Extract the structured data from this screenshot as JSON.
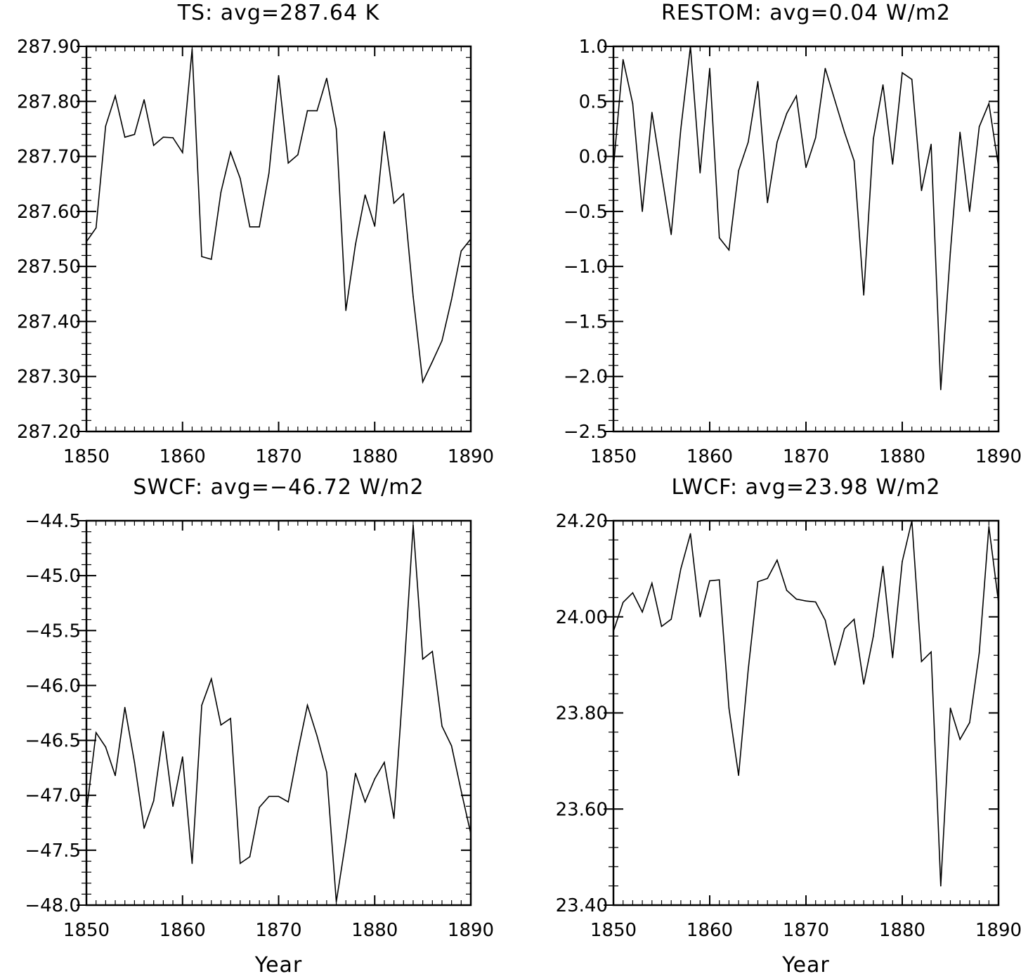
{
  "chart_data": [
    {
      "type": "line",
      "title": "TS: avg=287.64 K",
      "xlabel": "",
      "ylabel": "",
      "xlim": [
        1850,
        1890
      ],
      "ylim": [
        287.2,
        287.9
      ],
      "xticks": [
        1850,
        1860,
        1870,
        1880,
        1890
      ],
      "yticks": [
        287.2,
        287.3,
        287.4,
        287.5,
        287.6,
        287.7,
        287.8,
        287.9
      ],
      "ytick_labels": [
        "287.20",
        "287.30",
        "287.40",
        "287.50",
        "287.60",
        "287.70",
        "287.80",
        "287.90"
      ],
      "x": [
        1850,
        1851,
        1852,
        1853,
        1854,
        1855,
        1856,
        1857,
        1858,
        1859,
        1860,
        1861,
        1862,
        1863,
        1864,
        1865,
        1866,
        1867,
        1868,
        1869,
        1870,
        1871,
        1872,
        1873,
        1874,
        1875,
        1876,
        1877,
        1878,
        1879,
        1880,
        1881,
        1882,
        1883,
        1884,
        1885,
        1886,
        1887,
        1888,
        1889,
        1890
      ],
      "values": [
        287.545,
        287.57,
        287.755,
        287.81,
        287.735,
        287.74,
        287.803,
        287.72,
        287.735,
        287.734,
        287.707,
        287.895,
        287.518,
        287.513,
        287.635,
        287.708,
        287.66,
        287.572,
        287.572,
        287.67,
        287.847,
        287.688,
        287.703,
        287.783,
        287.783,
        287.842,
        287.75,
        287.42,
        287.54,
        287.63,
        287.573,
        287.745,
        287.615,
        287.632,
        287.445,
        287.29,
        287.327,
        287.365,
        287.44,
        287.528,
        287.55
      ]
    },
    {
      "type": "line",
      "title": "RESTOM: avg=0.04 W/m2",
      "xlabel": "",
      "ylabel": "",
      "xlim": [
        1850,
        1890
      ],
      "ylim": [
        -2.5,
        1.0
      ],
      "xticks": [
        1850,
        1860,
        1870,
        1880,
        1890
      ],
      "yticks": [
        -2.5,
        -2.0,
        -1.5,
        -1.0,
        -0.5,
        0.0,
        0.5,
        1.0
      ],
      "ytick_labels": [
        "−2.5",
        "−2.0",
        "−1.5",
        "−1.0",
        "−0.5",
        "0.0",
        "0.5",
        "1.0"
      ],
      "x": [
        1850,
        1851,
        1852,
        1853,
        1854,
        1855,
        1856,
        1857,
        1858,
        1859,
        1860,
        1861,
        1862,
        1863,
        1864,
        1865,
        1866,
        1867,
        1868,
        1869,
        1870,
        1871,
        1872,
        1873,
        1874,
        1875,
        1876,
        1877,
        1878,
        1879,
        1880,
        1881,
        1882,
        1883,
        1884,
        1885,
        1886,
        1887,
        1888,
        1889,
        1890
      ],
      "values": [
        -0.1,
        0.88,
        0.48,
        -0.5,
        0.4,
        -0.16,
        -0.71,
        0.25,
        1.0,
        -0.15,
        0.8,
        -0.74,
        -0.85,
        -0.13,
        0.13,
        0.68,
        -0.42,
        0.13,
        0.39,
        0.55,
        -0.1,
        0.17,
        0.8,
        0.51,
        0.22,
        -0.04,
        -1.26,
        0.16,
        0.65,
        -0.07,
        0.76,
        0.7,
        -0.31,
        0.11,
        -2.12,
        -0.87,
        0.22,
        -0.5,
        0.27,
        0.48,
        -0.09
      ]
    },
    {
      "type": "line",
      "title": "SWCF: avg=−46.72 W/m2",
      "xlabel": "Year",
      "ylabel": "",
      "xlim": [
        1850,
        1890
      ],
      "ylim": [
        -48.0,
        -44.5
      ],
      "xticks": [
        1850,
        1860,
        1870,
        1880,
        1890
      ],
      "yticks": [
        -48.0,
        -47.5,
        -47.0,
        -46.5,
        -46.0,
        -45.5,
        -45.0,
        -44.5
      ],
      "ytick_labels": [
        "−48.0",
        "−47.5",
        "−47.0",
        "−46.5",
        "−46.0",
        "−45.5",
        "−45.0",
        "−44.5"
      ],
      "x": [
        1850,
        1851,
        1852,
        1853,
        1854,
        1855,
        1856,
        1857,
        1858,
        1859,
        1860,
        1861,
        1862,
        1863,
        1864,
        1865,
        1866,
        1867,
        1868,
        1869,
        1870,
        1871,
        1872,
        1873,
        1874,
        1875,
        1876,
        1877,
        1878,
        1879,
        1880,
        1881,
        1882,
        1883,
        1884,
        1885,
        1886,
        1887,
        1888,
        1889,
        1890
      ],
      "values": [
        -47.15,
        -46.43,
        -46.56,
        -46.82,
        -46.2,
        -46.7,
        -47.3,
        -47.05,
        -46.42,
        -47.1,
        -46.65,
        -47.62,
        -46.18,
        -45.94,
        -46.36,
        -46.3,
        -47.62,
        -47.56,
        -47.11,
        -47.01,
        -47.01,
        -47.06,
        -46.6,
        -46.18,
        -46.46,
        -46.79,
        -47.97,
        -47.41,
        -46.8,
        -47.06,
        -46.85,
        -46.7,
        -47.21,
        -45.94,
        -44.54,
        -45.76,
        -45.69,
        -46.37,
        -46.55,
        -46.96,
        -47.35
      ]
    },
    {
      "type": "line",
      "title": "LWCF: avg=23.98 W/m2",
      "xlabel": "Year",
      "ylabel": "",
      "xlim": [
        1850,
        1890
      ],
      "ylim": [
        23.4,
        24.2
      ],
      "xticks": [
        1850,
        1860,
        1870,
        1880,
        1890
      ],
      "yticks": [
        23.4,
        23.6,
        23.8,
        24.0,
        24.2
      ],
      "ytick_labels": [
        "23.40",
        "23.60",
        "23.80",
        "24.00",
        "24.20"
      ],
      "x": [
        1850,
        1851,
        1852,
        1853,
        1854,
        1855,
        1856,
        1857,
        1858,
        1859,
        1860,
        1861,
        1862,
        1863,
        1864,
        1865,
        1866,
        1867,
        1868,
        1869,
        1870,
        1871,
        1872,
        1873,
        1874,
        1875,
        1876,
        1877,
        1878,
        1879,
        1880,
        1881,
        1882,
        1883,
        1884,
        1885,
        1886,
        1887,
        1888,
        1889,
        1890
      ],
      "values": [
        23.97,
        24.03,
        24.05,
        24.01,
        24.07,
        23.98,
        23.995,
        24.1,
        24.173,
        24.0,
        24.075,
        24.077,
        23.81,
        23.67,
        23.89,
        24.073,
        24.08,
        24.118,
        24.055,
        24.037,
        24.033,
        24.031,
        23.993,
        23.9,
        23.975,
        23.995,
        23.86,
        23.96,
        24.105,
        23.915,
        24.115,
        24.2,
        23.907,
        23.927,
        23.44,
        23.81,
        23.745,
        23.78,
        23.925,
        24.188,
        24.03
      ]
    }
  ]
}
